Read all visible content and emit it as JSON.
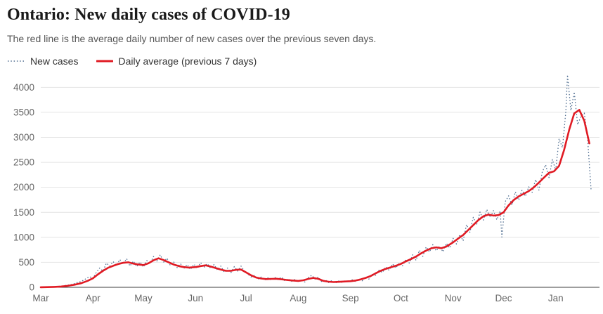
{
  "header": {
    "title": "Ontario: New daily cases of COVID-19",
    "subtitle": "The red line is the average daily number of new cases over the previous seven days."
  },
  "legend": {
    "items": [
      {
        "label": "New cases",
        "swatch": "dotted-line"
      },
      {
        "label": "Daily average (previous 7 days)",
        "swatch": "solid-line"
      }
    ]
  },
  "colors": {
    "new_cases": "#506e91",
    "average": "#e01b24",
    "grid": "#e4e4e4",
    "axis": "#3c3c3c",
    "tick_text": "#666666"
  },
  "chart_data": {
    "type": "line",
    "title": "Ontario: New daily cases of COVID-19",
    "subtitle": "The red line is the average daily number of new cases over the previous seven days.",
    "x_unit": "days since Mar 1, 2020",
    "xlim": [
      0,
      332
    ],
    "ylim": [
      0,
      4300
    ],
    "y_ticks": [
      0,
      500,
      1000,
      1500,
      2000,
      2500,
      3000,
      3500,
      4000
    ],
    "x_ticks": [
      {
        "label": "Mar",
        "day": 0
      },
      {
        "label": "Apr",
        "day": 31
      },
      {
        "label": "May",
        "day": 61
      },
      {
        "label": "Jun",
        "day": 92
      },
      {
        "label": "Jul",
        "day": 122
      },
      {
        "label": "Aug",
        "day": 153
      },
      {
        "label": "Sep",
        "day": 184
      },
      {
        "label": "Oct",
        "day": 214
      },
      {
        "label": "Nov",
        "day": 245
      },
      {
        "label": "Dec",
        "day": 275
      },
      {
        "label": "Jan",
        "day": 306
      }
    ],
    "grid": true,
    "legend_position": "top-left",
    "series": [
      {
        "name": "New cases",
        "style": "dotted",
        "color": "#506e91",
        "points": [
          [
            0,
            0
          ],
          [
            3,
            3
          ],
          [
            6,
            8
          ],
          [
            9,
            14
          ],
          [
            12,
            22
          ],
          [
            15,
            38
          ],
          [
            17,
            48
          ],
          [
            19,
            62
          ],
          [
            21,
            88
          ],
          [
            23,
            105
          ],
          [
            25,
            135
          ],
          [
            27,
            175
          ],
          [
            29,
            215
          ],
          [
            31,
            175
          ],
          [
            33,
            295
          ],
          [
            35,
            385
          ],
          [
            37,
            325
          ],
          [
            39,
            485
          ],
          [
            41,
            425
          ],
          [
            43,
            515
          ],
          [
            45,
            435
          ],
          [
            47,
            555
          ],
          [
            49,
            465
          ],
          [
            51,
            575
          ],
          [
            53,
            425
          ],
          [
            55,
            525
          ],
          [
            57,
            415
          ],
          [
            59,
            505
          ],
          [
            61,
            405
          ],
          [
            63,
            535
          ],
          [
            65,
            475
          ],
          [
            67,
            615
          ],
          [
            69,
            525
          ],
          [
            71,
            650
          ],
          [
            73,
            505
          ],
          [
            75,
            585
          ],
          [
            77,
            435
          ],
          [
            79,
            505
          ],
          [
            81,
            395
          ],
          [
            83,
            475
          ],
          [
            85,
            375
          ],
          [
            87,
            455
          ],
          [
            89,
            355
          ],
          [
            91,
            465
          ],
          [
            93,
            375
          ],
          [
            95,
            495
          ],
          [
            97,
            395
          ],
          [
            99,
            475
          ],
          [
            101,
            375
          ],
          [
            103,
            455
          ],
          [
            105,
            345
          ],
          [
            107,
            425
          ],
          [
            109,
            305
          ],
          [
            111,
            385
          ],
          [
            113,
            295
          ],
          [
            115,
            415
          ],
          [
            117,
            325
          ],
          [
            119,
            425
          ],
          [
            121,
            325
          ],
          [
            123,
            265
          ],
          [
            125,
            205
          ],
          [
            127,
            235
          ],
          [
            129,
            165
          ],
          [
            131,
            205
          ],
          [
            133,
            140
          ],
          [
            135,
            190
          ],
          [
            137,
            145
          ],
          [
            139,
            200
          ],
          [
            141,
            155
          ],
          [
            143,
            205
          ],
          [
            145,
            130
          ],
          [
            147,
            170
          ],
          [
            149,
            120
          ],
          [
            151,
            155
          ],
          [
            153,
            110
          ],
          [
            155,
            150
          ],
          [
            157,
            105
          ],
          [
            159,
            195
          ],
          [
            161,
            240
          ],
          [
            163,
            165
          ],
          [
            165,
            205
          ],
          [
            167,
            110
          ],
          [
            169,
            150
          ],
          [
            171,
            95
          ],
          [
            173,
            135
          ],
          [
            175,
            85
          ],
          [
            177,
            125
          ],
          [
            179,
            100
          ],
          [
            181,
            135
          ],
          [
            183,
            105
          ],
          [
            185,
            150
          ],
          [
            187,
            115
          ],
          [
            189,
            170
          ],
          [
            191,
            130
          ],
          [
            193,
            210
          ],
          [
            195,
            165
          ],
          [
            197,
            260
          ],
          [
            199,
            240
          ],
          [
            201,
            340
          ],
          [
            203,
            295
          ],
          [
            205,
            410
          ],
          [
            207,
            340
          ],
          [
            209,
            470
          ],
          [
            211,
            385
          ],
          [
            213,
            490
          ],
          [
            215,
            430
          ],
          [
            217,
            560
          ],
          [
            219,
            485
          ],
          [
            221,
            650
          ],
          [
            223,
            540
          ],
          [
            225,
            740
          ],
          [
            227,
            620
          ],
          [
            229,
            810
          ],
          [
            231,
            705
          ],
          [
            233,
            855
          ],
          [
            235,
            730
          ],
          [
            237,
            825
          ],
          [
            239,
            710
          ],
          [
            241,
            880
          ],
          [
            243,
            785
          ],
          [
            245,
            980
          ],
          [
            247,
            865
          ],
          [
            249,
            1055
          ],
          [
            251,
            930
          ],
          [
            253,
            1255
          ],
          [
            255,
            1100
          ],
          [
            257,
            1400
          ],
          [
            259,
            1255
          ],
          [
            261,
            1505
          ],
          [
            263,
            1345
          ],
          [
            265,
            1560
          ],
          [
            267,
            1400
          ],
          [
            269,
            1535
          ],
          [
            271,
            1350
          ],
          [
            273,
            1525
          ],
          [
            274,
            1005
          ],
          [
            276,
            1715
          ],
          [
            278,
            1830
          ],
          [
            280,
            1645
          ],
          [
            282,
            1910
          ],
          [
            284,
            1745
          ],
          [
            286,
            1945
          ],
          [
            288,
            1820
          ],
          [
            290,
            2010
          ],
          [
            292,
            1900
          ],
          [
            294,
            2155
          ],
          [
            296,
            1945
          ],
          [
            298,
            2310
          ],
          [
            300,
            2450
          ],
          [
            302,
            2195
          ],
          [
            304,
            2555
          ],
          [
            306,
            2345
          ],
          [
            308,
            2970
          ],
          [
            310,
            2795
          ],
          [
            312,
            3515
          ],
          [
            313,
            4250
          ],
          [
            315,
            3535
          ],
          [
            317,
            3905
          ],
          [
            319,
            3255
          ],
          [
            321,
            3420
          ],
          [
            323,
            3485
          ],
          [
            325,
            2950
          ],
          [
            327,
            1955
          ]
        ]
      },
      {
        "name": "Daily average (previous 7 days)",
        "style": "solid",
        "color": "#e01b24",
        "points": [
          [
            0,
            2
          ],
          [
            4,
            4
          ],
          [
            8,
            9
          ],
          [
            12,
            16
          ],
          [
            16,
            30
          ],
          [
            20,
            52
          ],
          [
            24,
            82
          ],
          [
            28,
            130
          ],
          [
            31,
            180
          ],
          [
            34,
            260
          ],
          [
            37,
            330
          ],
          [
            40,
            390
          ],
          [
            43,
            430
          ],
          [
            46,
            465
          ],
          [
            49,
            490
          ],
          [
            52,
            500
          ],
          [
            55,
            475
          ],
          [
            58,
            455
          ],
          [
            61,
            445
          ],
          [
            64,
            480
          ],
          [
            67,
            540
          ],
          [
            70,
            580
          ],
          [
            73,
            545
          ],
          [
            76,
            500
          ],
          [
            79,
            455
          ],
          [
            82,
            425
          ],
          [
            85,
            405
          ],
          [
            88,
            395
          ],
          [
            92,
            405
          ],
          [
            95,
            425
          ],
          [
            98,
            440
          ],
          [
            101,
            415
          ],
          [
            104,
            385
          ],
          [
            107,
            355
          ],
          [
            110,
            330
          ],
          [
            113,
            330
          ],
          [
            116,
            350
          ],
          [
            119,
            355
          ],
          [
            122,
            300
          ],
          [
            125,
            240
          ],
          [
            128,
            195
          ],
          [
            131,
            175
          ],
          [
            134,
            165
          ],
          [
            137,
            168
          ],
          [
            140,
            172
          ],
          [
            143,
            160
          ],
          [
            146,
            148
          ],
          [
            149,
            138
          ],
          [
            153,
            128
          ],
          [
            156,
            140
          ],
          [
            159,
            168
          ],
          [
            162,
            188
          ],
          [
            165,
            168
          ],
          [
            168,
            128
          ],
          [
            171,
            112
          ],
          [
            174,
            105
          ],
          [
            177,
            110
          ],
          [
            180,
            115
          ],
          [
            184,
            122
          ],
          [
            187,
            135
          ],
          [
            190,
            158
          ],
          [
            193,
            188
          ],
          [
            196,
            225
          ],
          [
            199,
            280
          ],
          [
            202,
            330
          ],
          [
            205,
            370
          ],
          [
            208,
            400
          ],
          [
            211,
            432
          ],
          [
            214,
            468
          ],
          [
            217,
            520
          ],
          [
            220,
            565
          ],
          [
            223,
            615
          ],
          [
            226,
            680
          ],
          [
            229,
            735
          ],
          [
            232,
            780
          ],
          [
            235,
            800
          ],
          [
            238,
            782
          ],
          [
            241,
            815
          ],
          [
            245,
            900
          ],
          [
            248,
            975
          ],
          [
            251,
            1045
          ],
          [
            254,
            1145
          ],
          [
            257,
            1245
          ],
          [
            260,
            1345
          ],
          [
            263,
            1420
          ],
          [
            266,
            1455
          ],
          [
            269,
            1435
          ],
          [
            272,
            1445
          ],
          [
            275,
            1500
          ],
          [
            278,
            1640
          ],
          [
            281,
            1745
          ],
          [
            284,
            1820
          ],
          [
            287,
            1870
          ],
          [
            290,
            1925
          ],
          [
            293,
            2000
          ],
          [
            296,
            2095
          ],
          [
            299,
            2195
          ],
          [
            302,
            2290
          ],
          [
            305,
            2320
          ],
          [
            308,
            2430
          ],
          [
            311,
            2750
          ],
          [
            314,
            3150
          ],
          [
            317,
            3480
          ],
          [
            320,
            3550
          ],
          [
            323,
            3330
          ],
          [
            326,
            2880
          ]
        ]
      }
    ]
  }
}
